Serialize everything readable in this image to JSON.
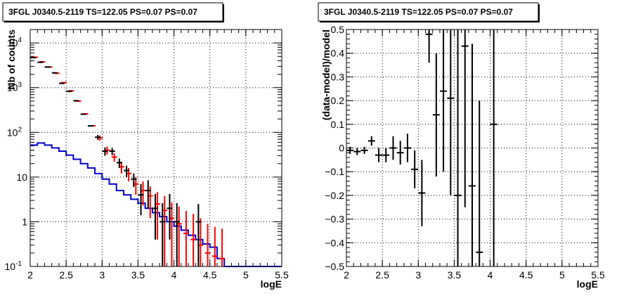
{
  "chart_data": [
    {
      "type": "line",
      "title": "3FGL J0340.5-2119 TS=122.05 PS=0.07 PS=0.07",
      "xlabel": "logE",
      "ylabel": "Nb of counts",
      "xlim": [
        2,
        5.5
      ],
      "ylim": [
        0.1,
        20000
      ],
      "yscale": "log",
      "grid": true,
      "x_ticks": [
        "2",
        "2.5",
        "3",
        "3.5",
        "4",
        "4.5",
        "5",
        "5.5"
      ],
      "y_ticks": [
        "10^-1",
        "1",
        "10",
        "10^2",
        "10^3",
        "10^4"
      ],
      "series": [
        {
          "color": "#ff0000",
          "style": "markers",
          "x": [
            2.05,
            2.15,
            2.25,
            2.35,
            2.45,
            2.55,
            2.65,
            2.75,
            2.85,
            2.95,
            3.05,
            3.15,
            3.25,
            3.35,
            3.45,
            3.55,
            3.65,
            3.75,
            3.85,
            3.95,
            4.05,
            4.15,
            4.25,
            4.35,
            4.45,
            4.55,
            4.65
          ],
          "y": [
            4800,
            3800,
            2900,
            2100,
            1300,
            850,
            500,
            260,
            140,
            75,
            40,
            28,
            17,
            12,
            7,
            5,
            3.8,
            2.5,
            1.8,
            1.2,
            0.9,
            0.55,
            0.4,
            0.3,
            0.2,
            0.17,
            0.15
          ],
          "y_err_low": [
            0,
            0,
            0,
            0,
            0,
            0,
            0,
            0,
            0,
            10,
            8,
            6,
            5,
            4,
            3,
            2.7,
            2.6,
            2.1,
            1.7,
            1.1,
            0.85,
            0.45,
            0.3,
            0.2,
            0.1,
            0.07,
            0.05
          ],
          "y_err_high": [
            0,
            0,
            0,
            0,
            0,
            0,
            0,
            0,
            0,
            10,
            8,
            6,
            5,
            4,
            3,
            3,
            2.4,
            2.1,
            2.0,
            1.5,
            1.3,
            1.2,
            1.1,
            0.9,
            0.7,
            0.6,
            0.55
          ]
        },
        {
          "color": "#000000",
          "style": "markers",
          "x": [
            2.05,
            2.15,
            2.25,
            2.35,
            2.45,
            2.55,
            2.65,
            2.75,
            2.85,
            2.95,
            3.05,
            3.15,
            3.25,
            3.35,
            3.45,
            3.55,
            3.65,
            3.75,
            3.85,
            3.95,
            4.05,
            4.35
          ],
          "y": [
            4700,
            3700,
            2900,
            2150,
            1250,
            830,
            510,
            255,
            140,
            78,
            38,
            38,
            21,
            14,
            9,
            4,
            5,
            2,
            1,
            2,
            1,
            1
          ],
          "y_err_low": [
            0,
            0,
            0,
            0,
            0,
            0,
            0,
            0,
            0,
            10,
            8,
            7,
            5,
            4,
            3,
            2.6,
            3,
            1.6,
            0.9,
            1.6,
            0.9,
            0.9
          ],
          "y_err_high": [
            0,
            0,
            0,
            0,
            0,
            0,
            0,
            0,
            0,
            10,
            8,
            7,
            5,
            4,
            3,
            3,
            3.5,
            2.2,
            1.6,
            2.2,
            1.6,
            1.5
          ]
        },
        {
          "color": "#0000cc",
          "style": "step",
          "bin_edges": [
            2.0,
            2.1,
            2.2,
            2.3,
            2.4,
            2.5,
            2.6,
            2.7,
            2.8,
            2.9,
            3.0,
            3.1,
            3.2,
            3.3,
            3.4,
            3.5,
            3.6,
            3.7,
            3.8,
            3.9,
            4.0,
            4.1,
            4.2,
            4.3,
            4.4,
            4.5,
            4.6,
            4.7,
            4.8,
            4.9,
            5.0,
            5.1,
            5.2,
            5.3,
            5.4,
            5.5
          ],
          "values": [
            52,
            58,
            52,
            45,
            38,
            31,
            25,
            20,
            16,
            12,
            9,
            7,
            5,
            4,
            3.2,
            2.6,
            2.0,
            1.6,
            1.3,
            1.0,
            0.8,
            0.65,
            0.5,
            0.4,
            0.32,
            0.27,
            0.15,
            0.1,
            0.1,
            0.1,
            0.1,
            0.1,
            0.1,
            0.1,
            0.1
          ]
        }
      ]
    },
    {
      "type": "scatter",
      "title": "3FGL J0340.5-2119 TS=122.05 PS=0.07 PS=0.07",
      "xlabel": "logE",
      "ylabel": "(data-model)/model",
      "xlim": [
        2,
        5.5
      ],
      "ylim": [
        -0.5,
        0.5
      ],
      "grid": true,
      "x_ticks": [
        "2",
        "2.5",
        "3",
        "3.5",
        "4",
        "4.5",
        "5",
        "5.5"
      ],
      "y_ticks": [
        "-0.5",
        "-0.4",
        "-0.3",
        "-0.2",
        "-0.1",
        "0",
        "0.1",
        "0.2",
        "0.3",
        "0.4",
        "0.5"
      ],
      "series": [
        {
          "color": "#000000",
          "x": [
            2.05,
            2.15,
            2.25,
            2.35,
            2.45,
            2.55,
            2.65,
            2.75,
            2.85,
            2.95,
            3.05,
            3.15,
            3.25,
            3.35,
            3.45,
            3.55,
            3.65,
            3.75,
            3.85,
            4.05
          ],
          "y": [
            -0.01,
            -0.015,
            -0.01,
            0.03,
            -0.03,
            -0.03,
            0.0,
            -0.02,
            0.0,
            -0.09,
            -0.19,
            0.48,
            0.14,
            0.24,
            0.21,
            -0.2,
            0.43,
            -0.16,
            -0.44,
            0.1
          ],
          "y_err": [
            0.015,
            0.015,
            0.015,
            0.02,
            0.03,
            0.03,
            0.05,
            0.05,
            0.06,
            0.08,
            0.14,
            0.12,
            0.26,
            0.34,
            0.41,
            0.7,
            0.68,
            0.6,
            0.64,
            0.8
          ]
        }
      ]
    }
  ]
}
